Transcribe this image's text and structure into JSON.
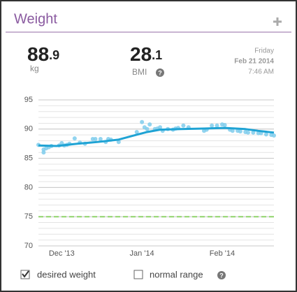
{
  "header": {
    "title": "Weight"
  },
  "stats": {
    "weight": {
      "whole": "88",
      "decimal": ".9",
      "unit": "kg"
    },
    "bmi": {
      "whole": "28",
      "decimal": ".1",
      "unit": "BMI",
      "help": "?"
    },
    "date": {
      "weekday": "Friday",
      "date": "Feb 21 2014",
      "time": "7:46 AM"
    }
  },
  "chart_data": {
    "type": "scatter",
    "xlim": [
      0,
      91
    ],
    "xticks": [
      {
        "value": 9,
        "label": "Dec '13"
      },
      {
        "value": 40,
        "label": "Jan '14"
      },
      {
        "value": 71,
        "label": "Feb '14"
      }
    ],
    "ylim": [
      70,
      95
    ],
    "yticks": [
      70,
      75,
      80,
      85,
      90,
      95
    ],
    "grid": true,
    "minor_grid_step": 1,
    "series": [
      {
        "type": "scatter",
        "color": "#7fcdec",
        "x": [
          0,
          2,
          2,
          3,
          4,
          5,
          8,
          9,
          10,
          11,
          12,
          14,
          16,
          18,
          21,
          22,
          24,
          26,
          27,
          28,
          31,
          38,
          40,
          41,
          42,
          43,
          45,
          46,
          47,
          48,
          50,
          52,
          53,
          54,
          56,
          58,
          64,
          65,
          67,
          69,
          71,
          72,
          74,
          75,
          77,
          78,
          80,
          81,
          83,
          85,
          86,
          88,
          90,
          91
        ],
        "values": [
          87.3,
          86.5,
          86.0,
          86.7,
          86.9,
          87.1,
          87.2,
          87.6,
          87.2,
          87.3,
          87.5,
          88.4,
          87.7,
          87.5,
          88.3,
          88.3,
          88.3,
          87.8,
          88.3,
          88.2,
          87.8,
          89.5,
          91.2,
          90.3,
          90.0,
          90.8,
          90.0,
          90.1,
          90.3,
          89.7,
          90.0,
          89.9,
          90.1,
          90.2,
          90.6,
          90.3,
          89.7,
          89.9,
          90.6,
          90.6,
          90.8,
          90.7,
          89.9,
          89.7,
          89.7,
          89.6,
          89.5,
          89.4,
          89.4,
          89.3,
          89.3,
          89.1,
          89.0,
          88.9
        ]
      },
      {
        "type": "line",
        "color": "#1fa3d4",
        "x": [
          0,
          7,
          15,
          23,
          31,
          36,
          42,
          47,
          55,
          64,
          72,
          80,
          85,
          91
        ],
        "values": [
          87.2,
          87.1,
          87.5,
          87.8,
          88.2,
          88.8,
          89.5,
          89.9,
          90.0,
          90.1,
          90.2,
          90.0,
          89.7,
          89.4
        ]
      }
    ],
    "target": {
      "value": 75,
      "color": "#8fd46a"
    }
  },
  "controls": [
    {
      "label": "desired weight",
      "checked": true
    },
    {
      "label": "normal range",
      "checked": false,
      "help": "?"
    }
  ]
}
